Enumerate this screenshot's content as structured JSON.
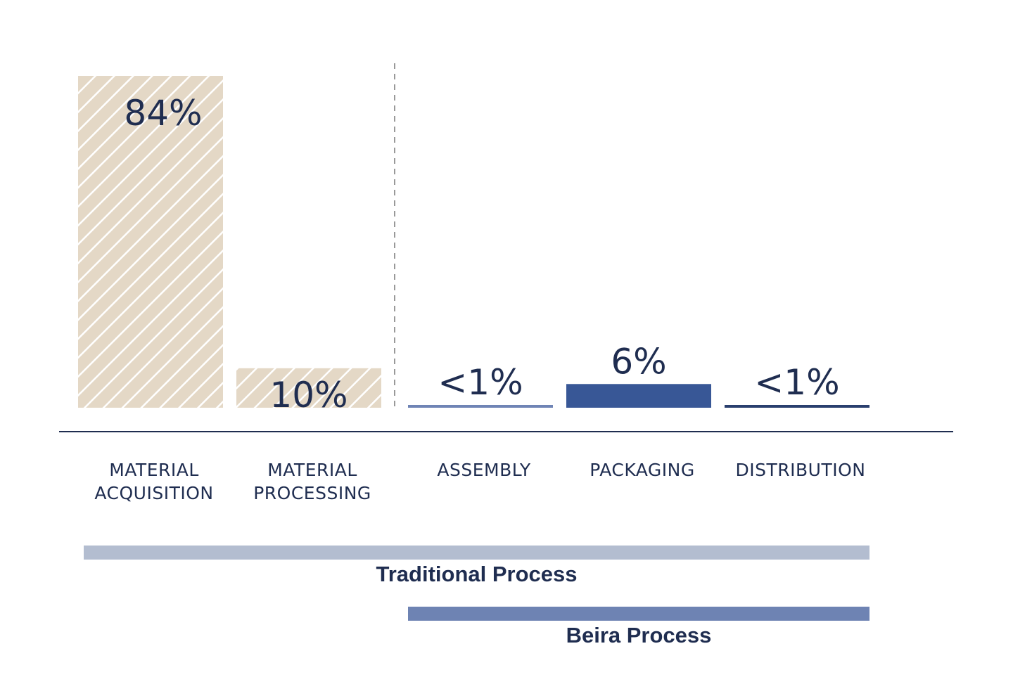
{
  "chart_data": {
    "type": "bar",
    "categories": [
      [
        "MATERIAL",
        "ACQUISITION"
      ],
      [
        "MATERIAL",
        "PROCESSING"
      ],
      [
        "ASSEMBLY"
      ],
      [
        "PACKAGING"
      ],
      [
        "DISTRIBUTION"
      ]
    ],
    "values": [
      84,
      10,
      0.5,
      6,
      0.5
    ],
    "value_labels": [
      "84%",
      "10%",
      "<1%",
      "6%",
      "<1%"
    ],
    "bar_styles": [
      "hatched",
      "hatched",
      "solid",
      "solid",
      "solid"
    ],
    "bar_colors": [
      "#e4d8c6",
      "#e4d8c6",
      "#6f84b5",
      "#385796",
      "#2a3f6e"
    ],
    "ylim": [
      0,
      84
    ],
    "grid": false,
    "divider_after_category": 1,
    "process_spans": [
      {
        "label": "Traditional Process",
        "from": 0,
        "to": 4,
        "color": "#b3bdd0"
      },
      {
        "label": "Beira Process",
        "from": 2,
        "to": 4,
        "color": "#6e83b3"
      }
    ],
    "colors": {
      "text": "#1f2d50",
      "axis": "#1f2d50",
      "divider": "#999999",
      "hatch_lines": "#ffffff"
    }
  }
}
